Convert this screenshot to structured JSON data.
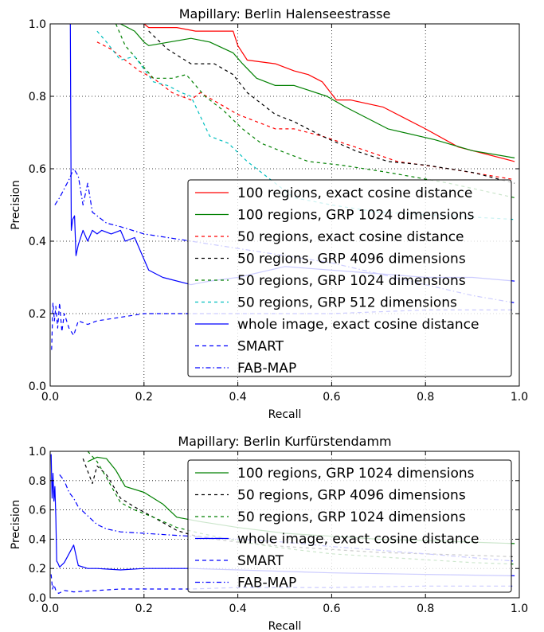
{
  "chart_data": [
    {
      "type": "line",
      "title": "Mapillary: Berlin Halenseestrasse",
      "xlabel": "Recall",
      "ylabel": "Precision",
      "xlim": [
        0,
        1
      ],
      "ylim": [
        0,
        1
      ],
      "xticks": [
        "0.0",
        "0.2",
        "0.4",
        "0.6",
        "0.8",
        "1.0"
      ],
      "yticks": [
        "0.0",
        "0.2",
        "0.4",
        "0.6",
        "0.8",
        "1.0"
      ],
      "grid": true,
      "legend_position": "lower-right",
      "series": [
        {
          "name": "100 regions, exact cosine distance",
          "color": "#ff0000",
          "dash": "solid",
          "x": [
            0.2,
            0.21,
            0.27,
            0.31,
            0.39,
            0.4,
            0.42,
            0.48,
            0.52,
            0.55,
            0.58,
            0.61,
            0.64,
            0.71,
            0.8,
            0.87,
            0.99
          ],
          "y": [
            1.0,
            0.99,
            0.99,
            0.98,
            0.98,
            0.94,
            0.9,
            0.89,
            0.87,
            0.86,
            0.84,
            0.79,
            0.79,
            0.77,
            0.71,
            0.66,
            0.62
          ]
        },
        {
          "name": "100 regions, GRP 1024 dimensions",
          "color": "#008000",
          "dash": "solid",
          "x": [
            0.15,
            0.18,
            0.2,
            0.21,
            0.3,
            0.34,
            0.39,
            0.41,
            0.44,
            0.48,
            0.52,
            0.59,
            0.63,
            0.72,
            0.82,
            0.9,
            0.99
          ],
          "y": [
            1.0,
            0.98,
            0.95,
            0.94,
            0.96,
            0.95,
            0.92,
            0.89,
            0.85,
            0.83,
            0.83,
            0.8,
            0.77,
            0.71,
            0.68,
            0.65,
            0.63
          ]
        },
        {
          "name": "50 regions, exact cosine distance",
          "color": "#ff0000",
          "dash": "4,4",
          "x": [
            0.1,
            0.13,
            0.16,
            0.19,
            0.22,
            0.26,
            0.3,
            0.32,
            0.36,
            0.4,
            0.44,
            0.48,
            0.52,
            0.58,
            0.65,
            0.74,
            0.85,
            0.99
          ],
          "y": [
            0.95,
            0.93,
            0.9,
            0.87,
            0.85,
            0.81,
            0.79,
            0.81,
            0.78,
            0.75,
            0.73,
            0.71,
            0.71,
            0.69,
            0.66,
            0.62,
            0.6,
            0.57
          ]
        },
        {
          "name": "50 regions, GRP 4096 dimensions",
          "color": "#000000",
          "dash": "4,4",
          "x": [
            0.21,
            0.25,
            0.3,
            0.35,
            0.39,
            0.42,
            0.48,
            0.52,
            0.58,
            0.65,
            0.72,
            0.8,
            0.9,
            0.99
          ],
          "y": [
            0.98,
            0.93,
            0.89,
            0.89,
            0.86,
            0.81,
            0.75,
            0.73,
            0.69,
            0.65,
            0.62,
            0.61,
            0.59,
            0.56
          ]
        },
        {
          "name": "50 regions, GRP 1024 dimensions",
          "color": "#008000",
          "dash": "4,4",
          "x": [
            0.14,
            0.16,
            0.2,
            0.22,
            0.26,
            0.29,
            0.33,
            0.37,
            0.41,
            0.45,
            0.49,
            0.55,
            0.62,
            0.72,
            0.85,
            0.99
          ],
          "y": [
            1.0,
            0.94,
            0.88,
            0.85,
            0.85,
            0.86,
            0.8,
            0.76,
            0.71,
            0.67,
            0.65,
            0.62,
            0.61,
            0.59,
            0.56,
            0.52
          ]
        },
        {
          "name": "50 regions, GRP 512 dimensions",
          "color": "#00bfbf",
          "dash": "4,4",
          "x": [
            0.1,
            0.12,
            0.15,
            0.18,
            0.22,
            0.25,
            0.28,
            0.3,
            0.34,
            0.38,
            0.42,
            0.47,
            0.52,
            0.6,
            0.7,
            0.85,
            0.99
          ],
          "y": [
            0.98,
            0.95,
            0.9,
            0.91,
            0.84,
            0.83,
            0.81,
            0.8,
            0.69,
            0.67,
            0.62,
            0.57,
            0.52,
            0.5,
            0.48,
            0.47,
            0.46
          ]
        },
        {
          "name": "whole image, exact cosine distance",
          "color": "#0000ff",
          "dash": "solid",
          "x": [
            0.043,
            0.045,
            0.048,
            0.052,
            0.055,
            0.06,
            0.07,
            0.08,
            0.09,
            0.1,
            0.11,
            0.13,
            0.15,
            0.16,
            0.18,
            0.2,
            0.21,
            0.24,
            0.3,
            0.34,
            0.4,
            0.5,
            0.6,
            0.7,
            0.8,
            0.9,
            0.99
          ],
          "y": [
            1.0,
            0.43,
            0.46,
            0.47,
            0.36,
            0.39,
            0.43,
            0.4,
            0.43,
            0.42,
            0.43,
            0.42,
            0.43,
            0.4,
            0.41,
            0.35,
            0.32,
            0.3,
            0.28,
            0.29,
            0.3,
            0.33,
            0.32,
            0.31,
            0.3,
            0.3,
            0.29
          ]
        },
        {
          "name": "SMART",
          "color": "#0000ff",
          "dash": "5,4",
          "x": [
            0.003,
            0.006,
            0.009,
            0.012,
            0.016,
            0.02,
            0.025,
            0.03,
            0.04,
            0.05,
            0.06,
            0.08,
            0.1,
            0.15,
            0.2,
            0.25,
            0.3,
            0.4,
            0.5,
            0.6,
            0.8,
            0.99
          ],
          "y": [
            0.1,
            0.23,
            0.18,
            0.22,
            0.16,
            0.23,
            0.15,
            0.2,
            0.16,
            0.14,
            0.18,
            0.17,
            0.18,
            0.19,
            0.2,
            0.2,
            0.2,
            0.2,
            0.2,
            0.2,
            0.21,
            0.21
          ]
        },
        {
          "name": "FAB-MAP",
          "color": "#0000ff",
          "dash": "6,3,1.5,3",
          "x": [
            0.01,
            0.02,
            0.04,
            0.05,
            0.06,
            0.07,
            0.08,
            0.09,
            0.1,
            0.12,
            0.15,
            0.2,
            0.3,
            0.4,
            0.5,
            0.6,
            0.7,
            0.8,
            0.9,
            0.99
          ],
          "y": [
            0.5,
            0.52,
            0.57,
            0.6,
            0.58,
            0.5,
            0.56,
            0.48,
            0.47,
            0.45,
            0.44,
            0.42,
            0.4,
            0.38,
            0.36,
            0.34,
            0.31,
            0.28,
            0.25,
            0.23
          ]
        }
      ]
    },
    {
      "type": "line",
      "title": "Mapillary: Berlin Kurfürstendamm",
      "xlabel": "Recall",
      "ylabel": "Precision",
      "xlim": [
        0,
        1
      ],
      "ylim": [
        0,
        1
      ],
      "xticks": [
        "0.0",
        "0.2",
        "0.4",
        "0.6",
        "0.8",
        "1.0"
      ],
      "yticks": [
        "0.0",
        "0.2",
        "0.4",
        "0.6",
        "0.8",
        "1.0"
      ],
      "grid": true,
      "legend_position": "lower-right",
      "series": [
        {
          "name": "100 regions, GRP 1024 dimensions",
          "color": "#008000",
          "dash": "solid",
          "x": [
            0.08,
            0.1,
            0.12,
            0.14,
            0.16,
            0.2,
            0.24,
            0.27,
            0.32,
            0.4,
            0.5,
            0.6,
            0.7,
            0.8,
            0.9,
            0.99
          ],
          "y": [
            0.93,
            0.96,
            0.95,
            0.87,
            0.76,
            0.72,
            0.64,
            0.55,
            0.52,
            0.48,
            0.44,
            0.42,
            0.4,
            0.39,
            0.38,
            0.37
          ]
        },
        {
          "name": "50 regions, GRP 4096 dimensions",
          "color": "#000000",
          "dash": "4,4",
          "x": [
            0.07,
            0.09,
            0.1,
            0.12,
            0.15,
            0.18,
            0.22,
            0.27,
            0.3,
            0.35,
            0.4,
            0.5,
            0.6,
            0.7,
            0.8,
            0.9,
            0.99
          ],
          "y": [
            0.95,
            0.78,
            0.9,
            0.84,
            0.68,
            0.62,
            0.55,
            0.46,
            0.43,
            0.4,
            0.38,
            0.35,
            0.33,
            0.31,
            0.3,
            0.29,
            0.28
          ]
        },
        {
          "name": "50 regions, GRP 1024 dimensions",
          "color": "#008000",
          "dash": "4,4",
          "x": [
            0.08,
            0.1,
            0.12,
            0.15,
            0.18,
            0.22,
            0.27,
            0.32,
            0.38,
            0.45,
            0.52,
            0.6,
            0.7,
            0.8,
            0.9,
            0.99
          ],
          "y": [
            1.0,
            0.93,
            0.82,
            0.65,
            0.6,
            0.55,
            0.48,
            0.44,
            0.4,
            0.36,
            0.33,
            0.3,
            0.28,
            0.26,
            0.24,
            0.23
          ]
        },
        {
          "name": "whole image, exact cosine distance",
          "color": "#0000ff",
          "dash": "solid",
          "x": [
            0.002,
            0.004,
            0.006,
            0.008,
            0.01,
            0.012,
            0.014,
            0.016,
            0.02,
            0.03,
            0.04,
            0.05,
            0.06,
            0.08,
            0.1,
            0.15,
            0.2,
            0.3,
            0.4,
            0.5,
            0.6,
            0.8,
            0.99
          ],
          "y": [
            0.98,
            0.68,
            0.85,
            0.66,
            0.76,
            0.55,
            0.25,
            0.24,
            0.21,
            0.24,
            0.3,
            0.36,
            0.22,
            0.2,
            0.2,
            0.19,
            0.2,
            0.2,
            0.19,
            0.18,
            0.17,
            0.16,
            0.15
          ]
        },
        {
          "name": "SMART",
          "color": "#0000ff",
          "dash": "5,4",
          "x": [
            0.002,
            0.005,
            0.008,
            0.012,
            0.018,
            0.03,
            0.05,
            0.1,
            0.15,
            0.2,
            0.3,
            0.4,
            0.5,
            0.6,
            0.8,
            0.99
          ],
          "y": [
            0.16,
            0.06,
            0.09,
            0.05,
            0.03,
            0.05,
            0.04,
            0.05,
            0.06,
            0.06,
            0.06,
            0.07,
            0.07,
            0.07,
            0.08,
            0.08
          ]
        },
        {
          "name": "FAB-MAP",
          "color": "#0000ff",
          "dash": "6,3,1.5,3",
          "x": [
            0.02,
            0.03,
            0.04,
            0.05,
            0.06,
            0.08,
            0.1,
            0.12,
            0.15,
            0.2,
            0.25,
            0.3,
            0.4,
            0.5,
            0.6,
            0.8,
            0.99
          ],
          "y": [
            0.84,
            0.8,
            0.72,
            0.68,
            0.62,
            0.56,
            0.5,
            0.47,
            0.45,
            0.44,
            0.43,
            0.42,
            0.4,
            0.38,
            0.35,
            0.3,
            0.25
          ]
        }
      ]
    }
  ]
}
